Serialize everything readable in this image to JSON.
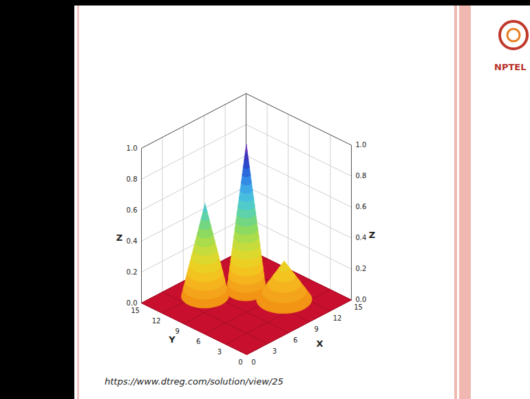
{
  "chart_data": {
    "type": "surface3d",
    "x_label": "X",
    "y_label": "Y",
    "z_label": "Z",
    "xlim": [
      0,
      15
    ],
    "xticks": [
      0,
      3,
      6,
      9,
      12,
      15
    ],
    "ylim": [
      0,
      15
    ],
    "yticks": [
      0,
      3,
      6,
      9,
      12,
      15
    ],
    "zlim": [
      0,
      1
    ],
    "zticks": [
      {
        "value": 0,
        "label": "0.0"
      },
      {
        "value": 0.2,
        "label": "0.2"
      },
      {
        "value": 0.4,
        "label": "0.4"
      },
      {
        "value": 0.6,
        "label": "0.6"
      },
      {
        "value": 0.8,
        "label": "0.8"
      },
      {
        "value": 1,
        "label": "1.0"
      }
    ],
    "grid": true,
    "peaks": [
      {
        "x": 9,
        "y": 9,
        "z": 0.95,
        "base_radius": 2.0
      },
      {
        "x": 5.4,
        "y": 11.3,
        "z": 0.6,
        "base_radius": 2.4
      },
      {
        "x": 10.4,
        "y": 5,
        "z": 0.25,
        "base_radius": 2.8
      }
    ],
    "source": "https://www.dtreg.com/solution/view/25",
    "logo_text": "NPTEL"
  }
}
